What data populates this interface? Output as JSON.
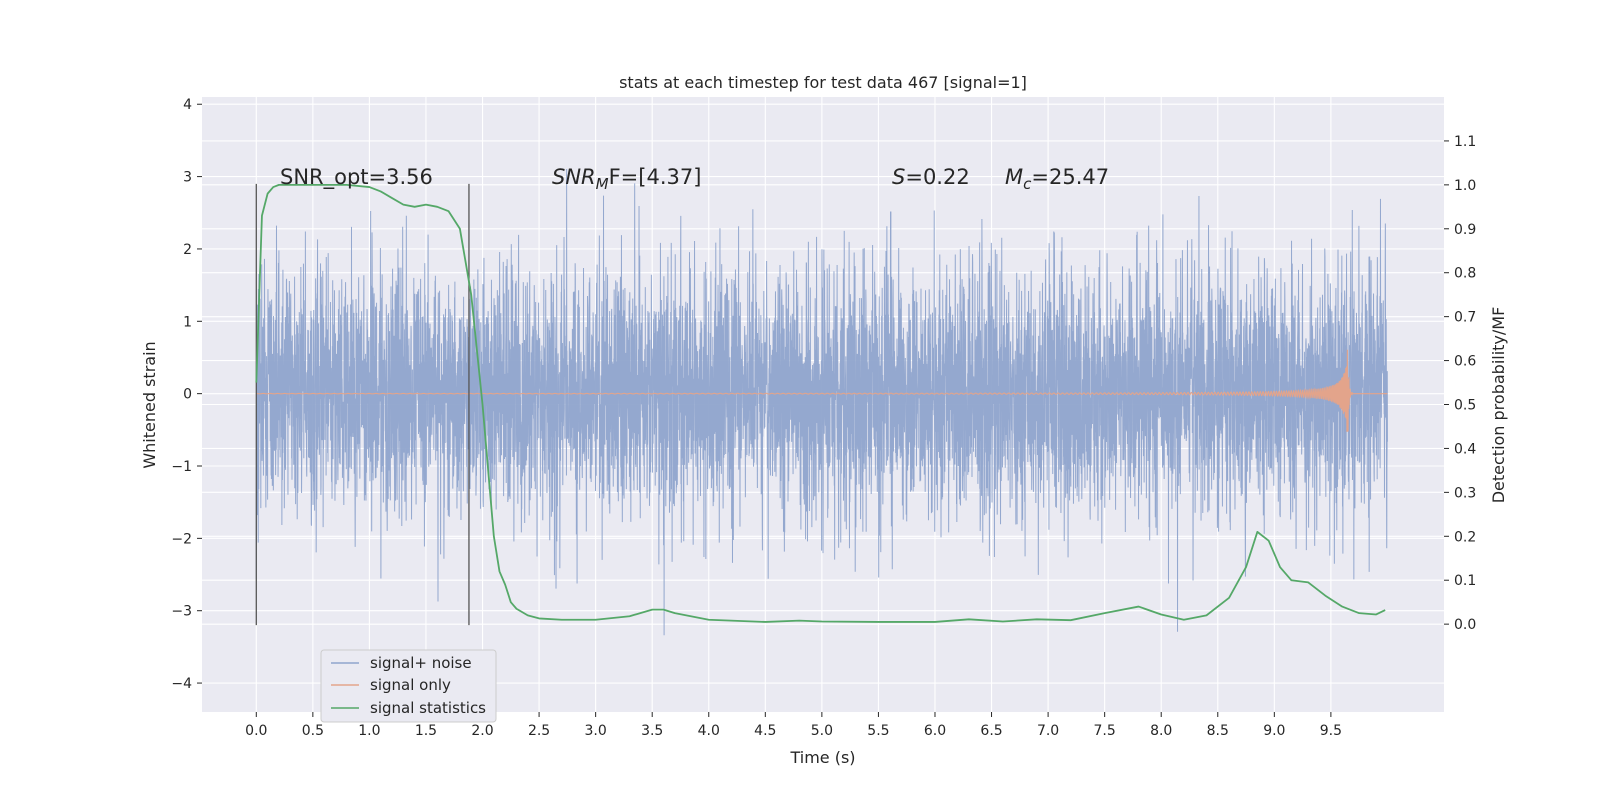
{
  "chart_data": {
    "type": "line",
    "title": "stats at each timestep for test data 467 [signal=1]",
    "xlabel": "Time (s)",
    "ylabel_left": "Whitened strain",
    "ylabel_right": "Detection probability/MF",
    "xlim": [
      -0.48,
      10.5
    ],
    "ylim_left": [
      -4.4,
      4.1
    ],
    "ylim_right": [
      -0.2,
      1.2
    ],
    "x_ticks": [
      "0.0",
      "0.5",
      "1.0",
      "1.5",
      "2.0",
      "2.5",
      "3.0",
      "3.5",
      "4.0",
      "4.5",
      "5.0",
      "5.5",
      "6.0",
      "6.5",
      "7.0",
      "7.5",
      "8.0",
      "8.5",
      "9.0",
      "9.5"
    ],
    "y_left_ticks": [
      "4",
      "3",
      "2",
      "1",
      "0",
      "−1",
      "−2",
      "−3",
      "−4"
    ],
    "y_right_ticks": [
      "1.1",
      "1.0",
      "0.9",
      "0.8",
      "0.7",
      "0.6",
      "0.5",
      "0.4",
      "0.3",
      "0.2",
      "0.1",
      "0.0"
    ],
    "grid": true,
    "legend_position": "lower-left",
    "annotations": {
      "snr_opt": "SNR_opt=3.56",
      "snr_mf": "F=[4.37]",
      "s_val": "=0.22",
      "mc_val": "=25.47"
    },
    "vertical_markers": [
      0.0,
      1.88
    ],
    "series": [
      {
        "name": "signal+ noise",
        "color": "#8fa4cc",
        "description_values": "noise band spanning approx -2.5 to 2.5 whitened strain, t=0 to 10 s",
        "noise_amplitude": 0.85
      },
      {
        "name": "signal only",
        "color": "#e3a48b",
        "chirp_peak_time": 9.65,
        "chirp_peak_amplitude": 0.75
      },
      {
        "name": "signal statistics",
        "color": "#55a868",
        "axis": "right",
        "x": [
          0.0,
          0.05,
          0.1,
          0.15,
          0.2,
          0.3,
          0.5,
          0.8,
          1.0,
          1.1,
          1.2,
          1.3,
          1.4,
          1.5,
          1.6,
          1.7,
          1.8,
          1.9,
          2.0,
          2.05,
          2.1,
          2.15,
          2.2,
          2.25,
          2.3,
          2.4,
          2.5,
          2.7,
          3.0,
          3.3,
          3.5,
          3.6,
          3.7,
          4.0,
          4.5,
          4.8,
          5.0,
          5.5,
          6.0,
          6.3,
          6.6,
          6.9,
          7.2,
          7.5,
          7.8,
          8.0,
          8.2,
          8.4,
          8.6,
          8.75,
          8.85,
          8.95,
          9.05,
          9.15,
          9.3,
          9.45,
          9.6,
          9.75,
          9.9,
          9.98
        ],
        "y": [
          0.55,
          0.93,
          0.98,
          0.995,
          1.0,
          1.0,
          1.0,
          1.0,
          0.995,
          0.985,
          0.97,
          0.955,
          0.95,
          0.955,
          0.95,
          0.94,
          0.9,
          0.75,
          0.5,
          0.35,
          0.2,
          0.12,
          0.09,
          0.05,
          0.035,
          0.02,
          0.013,
          0.01,
          0.01,
          0.018,
          0.033,
          0.033,
          0.025,
          0.01,
          0.005,
          0.008,
          0.006,
          0.005,
          0.005,
          0.011,
          0.006,
          0.011,
          0.009,
          0.025,
          0.04,
          0.022,
          0.01,
          0.02,
          0.06,
          0.13,
          0.21,
          0.19,
          0.13,
          0.1,
          0.095,
          0.065,
          0.04,
          0.025,
          0.022,
          0.032
        ]
      }
    ]
  }
}
